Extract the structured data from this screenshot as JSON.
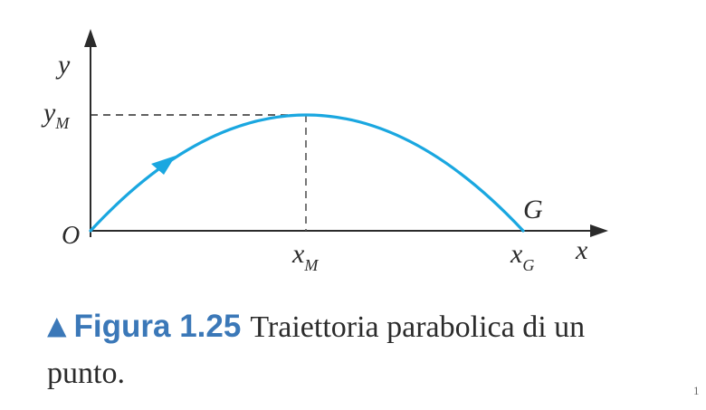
{
  "axes": {
    "x_label": "x",
    "y_label": "y",
    "origin_label": "O"
  },
  "ticks": {
    "y_max": {
      "base": "y",
      "sub": "M"
    },
    "x_max": {
      "base": "x",
      "sub": "M"
    },
    "x_ground": {
      "base": "x",
      "sub": "G"
    }
  },
  "points": {
    "ground_point": "G"
  },
  "colors": {
    "trajectory": "#1aa7e0",
    "axes": "#2b2b2b",
    "caption_accent": "#3b78b8"
  },
  "caption": {
    "marker": "▲",
    "figure_label": "Figura 1.25",
    "text": "Traiettoria parabolica di un punto."
  },
  "page_number": "1"
}
